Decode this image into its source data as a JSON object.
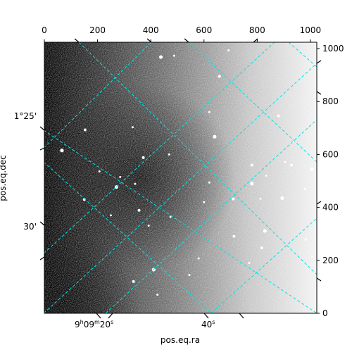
{
  "chart_data": {
    "type": "heatmap",
    "description_of_image": "grayscale astronomical sky image with overlaid celestial coordinate grid",
    "pixel_axes": {
      "x_ticks": [
        0,
        200,
        400,
        600,
        800,
        1000
      ],
      "y_ticks": [
        0,
        200,
        400,
        600,
        800,
        1000
      ],
      "xlim": [
        0,
        1024
      ],
      "ylim": [
        0,
        1024
      ]
    },
    "world_axes": {
      "xlabel": "pos.eq.ra",
      "ylabel": "pos.eq.dec",
      "ra_ticks": [
        {
          "label_h": "9",
          "label_m": "09",
          "label_s": "20",
          "kind": "hms"
        },
        {
          "label": "40",
          "unit": "s",
          "kind": "s"
        }
      ],
      "dec_ticks": [
        {
          "label": "1°25'"
        },
        {
          "label": "30'"
        }
      ]
    },
    "grid": {
      "on": true,
      "color": "#00e5e5",
      "style": "dashed"
    },
    "stars_pixel": [
      [
        438,
        968
      ],
      [
        488,
        973
      ],
      [
        692,
        993
      ],
      [
        658,
        895
      ],
      [
        620,
        760
      ],
      [
        640,
        667
      ],
      [
        880,
        746
      ],
      [
        936,
        648
      ],
      [
        332,
        703
      ],
      [
        153,
        693
      ],
      [
        66,
        615
      ],
      [
        469,
        600
      ],
      [
        372,
        588
      ],
      [
        207,
        536
      ],
      [
        285,
        515
      ],
      [
        271,
        477
      ],
      [
        341,
        489
      ],
      [
        620,
        494
      ],
      [
        710,
        432
      ],
      [
        812,
        433
      ],
      [
        894,
        435
      ],
      [
        356,
        389
      ],
      [
        474,
        364
      ],
      [
        392,
        331
      ],
      [
        713,
        291
      ],
      [
        829,
        311
      ],
      [
        982,
        279
      ],
      [
        817,
        247
      ],
      [
        1007,
        215
      ],
      [
        580,
        207
      ],
      [
        411,
        165
      ],
      [
        545,
        145
      ],
      [
        770,
        190
      ],
      [
        335,
        120
      ],
      [
        425,
        70
      ],
      [
        1005,
        545
      ],
      [
        929,
        560
      ],
      [
        905,
        571
      ],
      [
        834,
        520
      ],
      [
        780,
        560
      ],
      [
        780,
        490
      ],
      [
        980,
        470
      ],
      [
        150,
        430
      ],
      [
        250,
        370
      ],
      [
        600,
        420
      ]
    ]
  }
}
